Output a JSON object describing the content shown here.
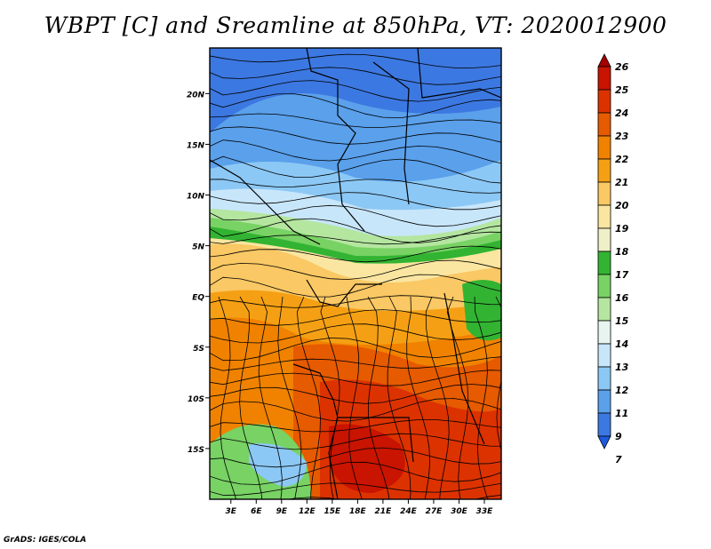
{
  "title": "WBPT [C] and Sreamline at 850hPa, VT: 2020012900",
  "credit": "GrADS: IGES/COLA",
  "map": {
    "lat_labels": [
      "20N",
      "15N",
      "10N",
      "5N",
      "EQ",
      "5S",
      "10S",
      "15S"
    ],
    "lat_values": [
      20,
      15,
      10,
      5,
      0,
      -5,
      -10,
      -15
    ],
    "lon_labels": [
      "3E",
      "6E",
      "9E",
      "12E",
      "15E",
      "18E",
      "21E",
      "24E",
      "27E",
      "30E",
      "33E"
    ],
    "lon_values": [
      3,
      6,
      9,
      12,
      15,
      18,
      21,
      24,
      27,
      30,
      33
    ]
  },
  "colorbar": {
    "labels": [
      "26",
      "25",
      "24",
      "23",
      "22",
      "21",
      "20",
      "19",
      "18",
      "17",
      "16",
      "15",
      "14",
      "13",
      "12",
      "11",
      "9",
      "7"
    ],
    "colors": [
      "#a50000",
      "#c81400",
      "#dc3200",
      "#e65a00",
      "#f08200",
      "#f5a014",
      "#fac864",
      "#fae6a0",
      "#f0f0c8",
      "#32b432",
      "#78d264",
      "#b4e6a0",
      "#e6f5f0",
      "#c8e6fa",
      "#8cc8f5",
      "#5aa0eb",
      "#3c78e1",
      "#1e5adc"
    ]
  }
}
